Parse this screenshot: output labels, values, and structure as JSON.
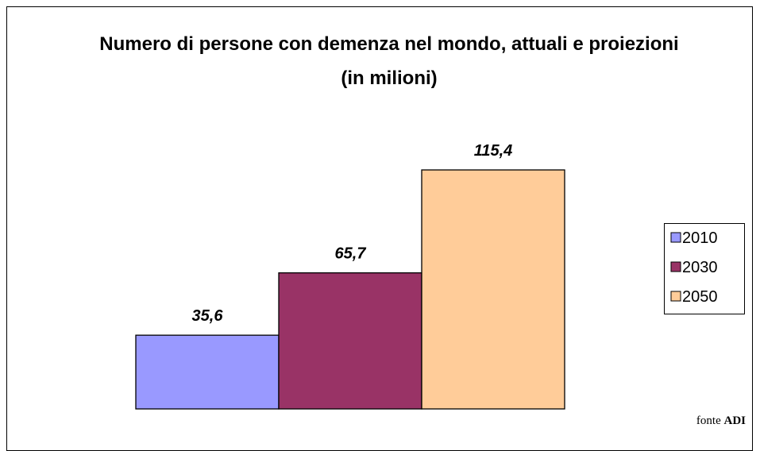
{
  "chart_data": {
    "type": "bar",
    "title": "Numero di persone con demenza nel mondo, attuali e proiezioni (in milioni)",
    "series": [
      {
        "name": "2010",
        "color": "#9999ff",
        "values": [
          35.6
        ],
        "value_labels": [
          "35,6"
        ]
      },
      {
        "name": "2030",
        "color": "#993366",
        "values": [
          65.7
        ],
        "value_labels": [
          "65,7"
        ]
      },
      {
        "name": "2050",
        "color": "#ffcc99",
        "values": [
          115.4
        ],
        "value_labels": [
          "115,4"
        ]
      }
    ],
    "source": "fonte",
    "source_name": "ADI"
  }
}
